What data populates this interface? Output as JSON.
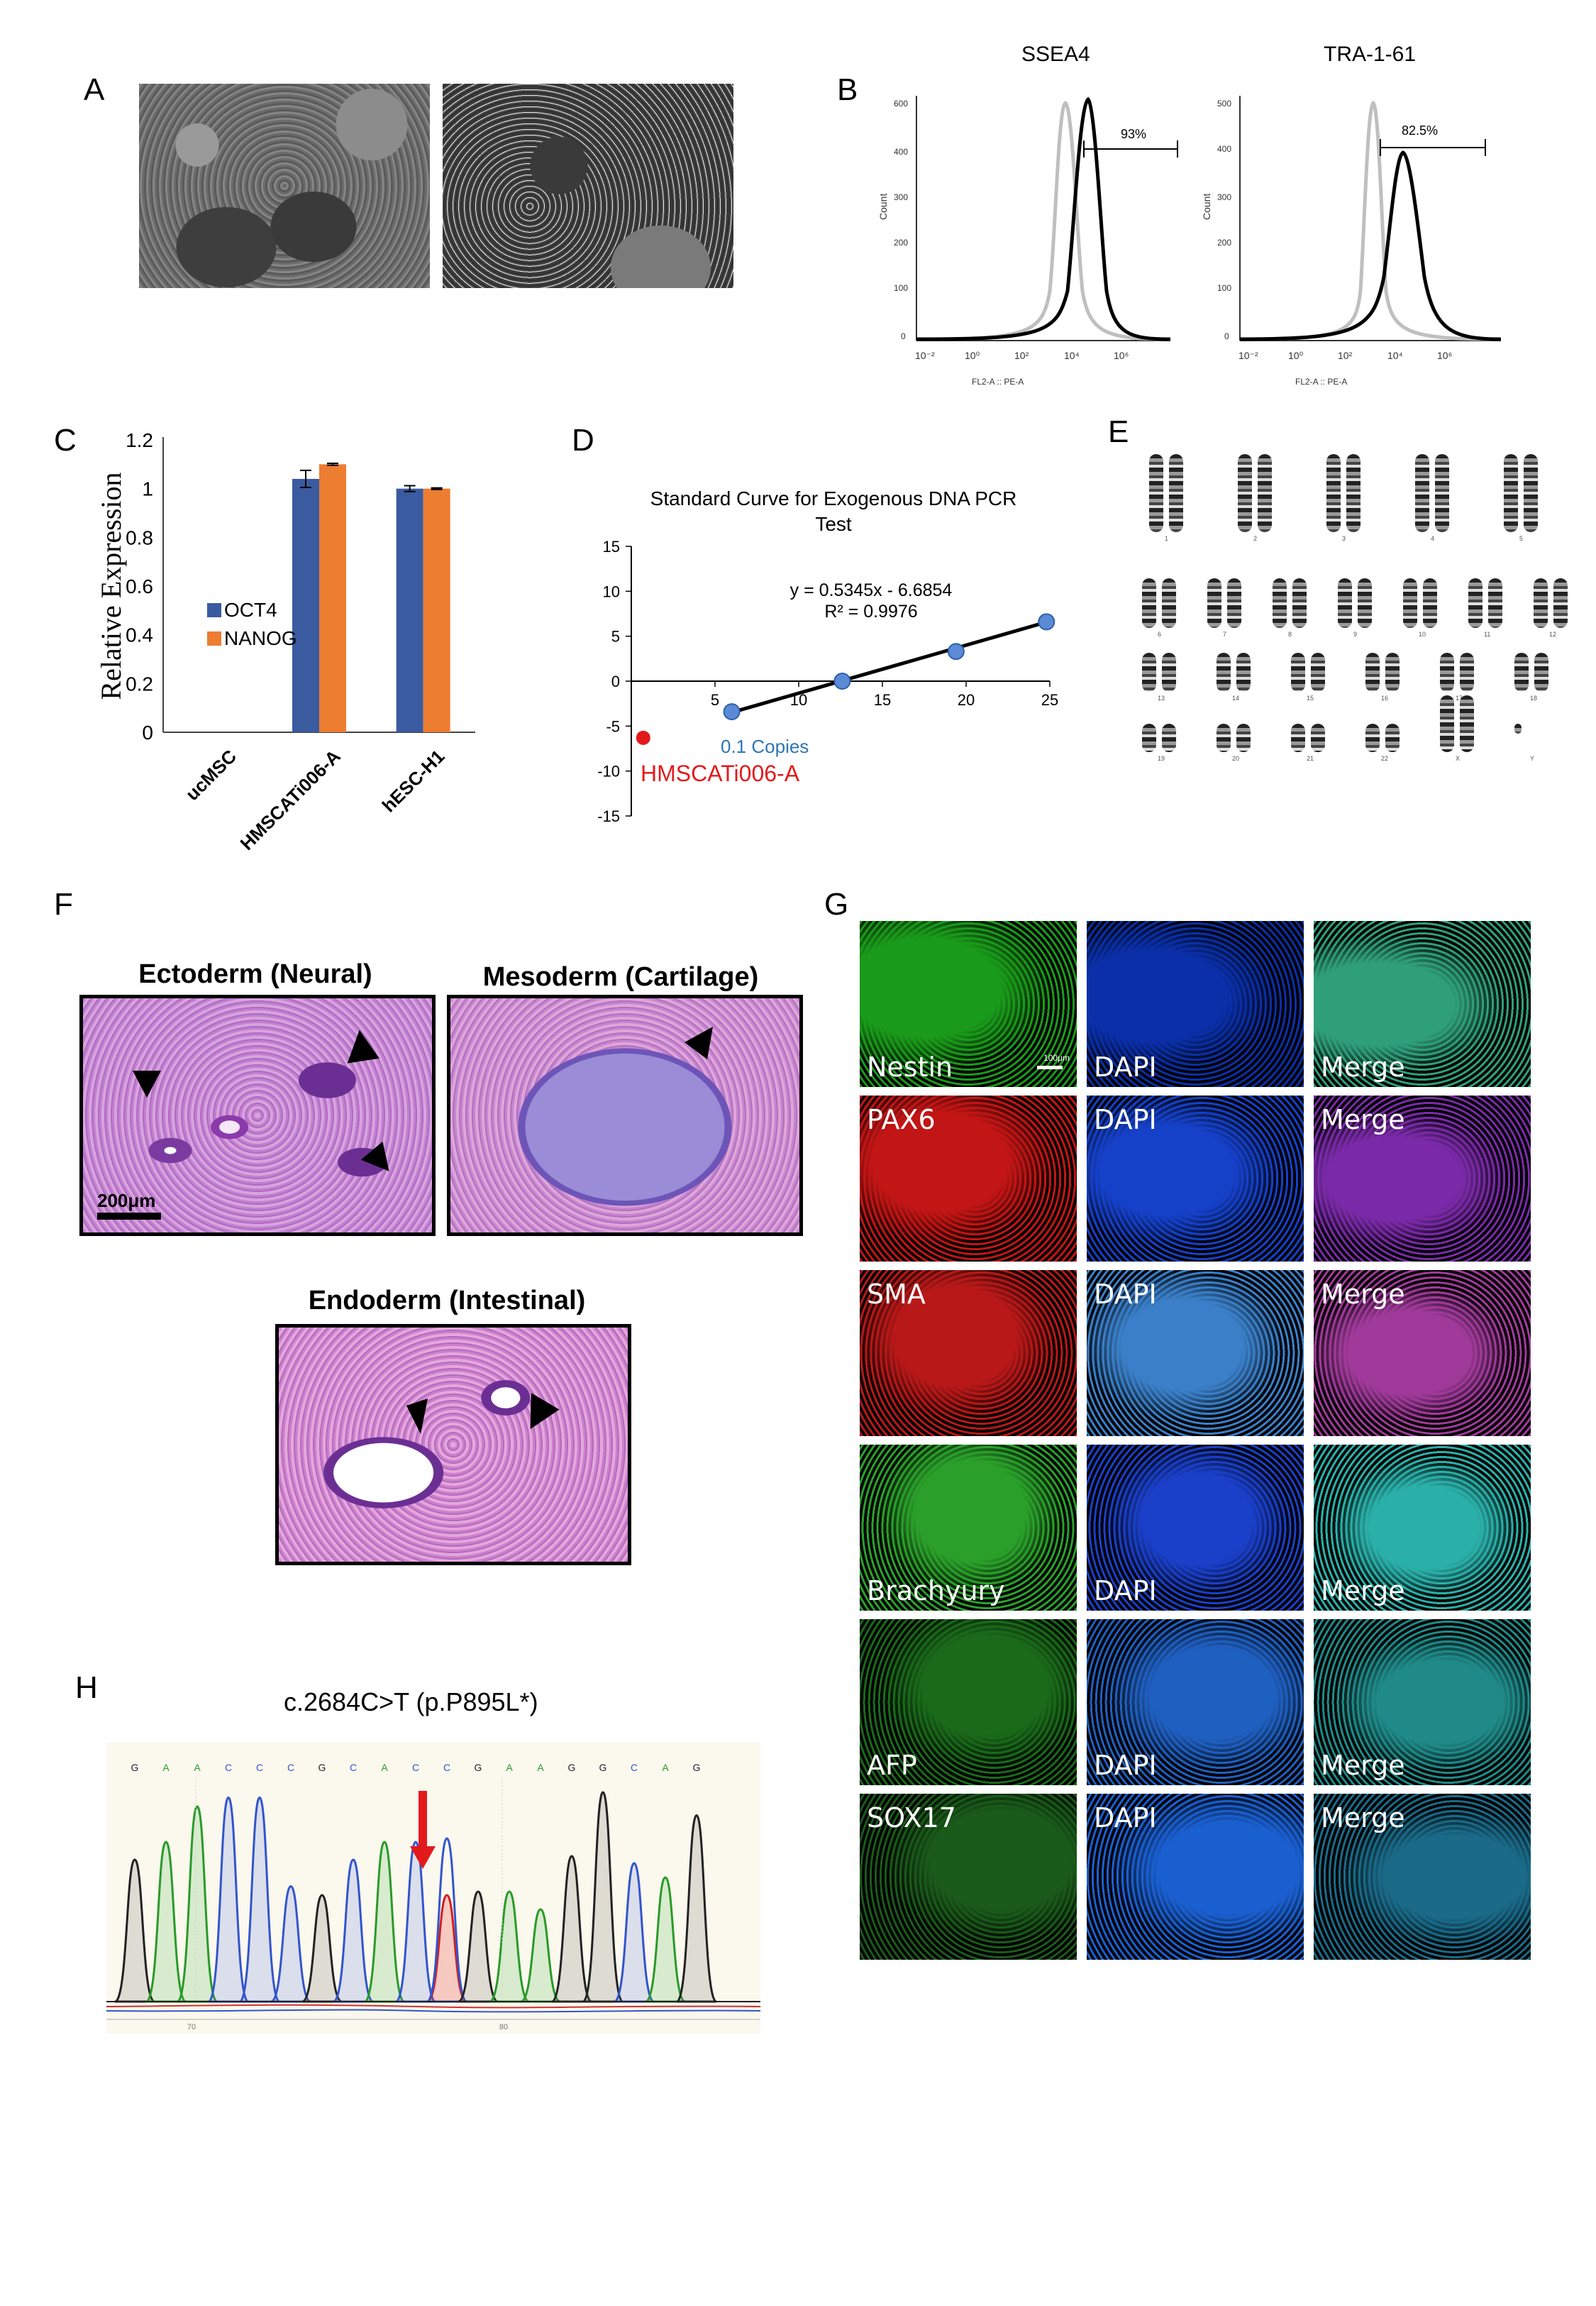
{
  "panels": {
    "a": "A",
    "b": "B",
    "c": "C",
    "d": "D",
    "e": "E",
    "f": "F",
    "g": "G",
    "h": "H"
  },
  "flow": {
    "plots": [
      {
        "title": "SSEA4",
        "percent": "93%",
        "xlabel": "FL2-A :: PE-A",
        "ylabel": "Count",
        "yticks": [
          "600",
          "400",
          "300",
          "200",
          "100",
          "0"
        ]
      },
      {
        "title": "TRA-1-61",
        "percent": "82.5%",
        "xlabel": "FL2-A :: PE-A",
        "ylabel": "Count",
        "yticks": [
          "500",
          "400",
          "300",
          "200",
          "100",
          "0"
        ]
      }
    ],
    "xticks": [
      "10⁻²",
      "10⁰",
      "10²",
      "10⁴",
      "10⁶"
    ]
  },
  "colors": {
    "oct4": "#3A5BA0",
    "nanog": "#ED7D31",
    "copies": "#2E75B6",
    "hmscati": "#E31A1C",
    "arrow": "#E31A1C"
  },
  "chart_data": [
    {
      "type": "bar",
      "ylabel": "Relative  Expression",
      "ylim": [
        0,
        1.2
      ],
      "yticks": [
        "0",
        "0.2",
        "0.4",
        "0.6",
        "0.8",
        "1",
        "1.2"
      ],
      "categories": [
        "ucMSC",
        "HMSCATi006-A",
        "hESC-H1"
      ],
      "series": [
        {
          "name": "OCT4",
          "values": [
            0,
            1.04,
            1.0
          ],
          "errors": [
            0,
            0.035,
            0.012
          ]
        },
        {
          "name": "NANOG",
          "values": [
            0,
            1.1,
            1.0
          ],
          "errors": [
            0,
            0.004,
            0.003
          ]
        }
      ],
      "legend": "left"
    },
    {
      "type": "scatter",
      "title": "Standard Curve for Exogenous DNA PCR Test",
      "xlim": [
        0,
        25
      ],
      "ylim": [
        -15,
        15
      ],
      "xticks": [
        "5",
        "10",
        "15",
        "20",
        "25"
      ],
      "yticks": [
        "15",
        "10",
        "5",
        "0",
        "-5",
        "-10",
        "-15"
      ],
      "series": [
        {
          "name": "0.1 Copies",
          "x": [
            6.0,
            12.6,
            19.4,
            24.8
          ],
          "y": [
            -3.4,
            0.0,
            3.3,
            6.6
          ]
        },
        {
          "name": "HMSCATi006-A",
          "x": [
            0.5
          ],
          "y": [
            -6.7
          ]
        }
      ],
      "trendline": {
        "slope": 0.5345,
        "intercept": -6.6854
      },
      "equation": "y = 0.5345x - 6.6854",
      "r2": "R² = 0.9976"
    }
  ],
  "karyotype": {
    "labels": [
      "1",
      "2",
      "3",
      "4",
      "5",
      "6",
      "7",
      "8",
      "9",
      "10",
      "11",
      "12",
      "13",
      "14",
      "15",
      "16",
      "17",
      "18",
      "19",
      "20",
      "21",
      "22",
      "X",
      "Y"
    ]
  },
  "histology": {
    "ectoderm": "Ectoderm (Neural)",
    "mesoderm": "Mesoderm (Cartilage)",
    "endoderm": "Endoderm (Intestinal)",
    "scale": "200μm"
  },
  "immuno": {
    "scale": "100μm",
    "rows": [
      {
        "marker": "Nestin",
        "dapi": "DAPI",
        "merge": "Merge"
      },
      {
        "marker": "PAX6",
        "dapi": "DAPI",
        "merge": "Merge"
      },
      {
        "marker": "SMA",
        "dapi": "DAPI",
        "merge": "Merge"
      },
      {
        "marker": "Brachyury",
        "dapi": "DAPI",
        "merge": "Merge"
      },
      {
        "marker": "AFP",
        "dapi": "DAPI",
        "merge": "Merge"
      },
      {
        "marker": "SOX17",
        "dapi": "DAPI",
        "merge": "Merge"
      }
    ]
  },
  "sequencing": {
    "title": "c.2684C>T (p.P895L*)",
    "bases": [
      "G",
      "A",
      "A",
      "C",
      "C",
      "C",
      "G",
      "C",
      "A",
      "C",
      "C",
      "G",
      "A",
      "A",
      "G",
      "G",
      "C",
      "A",
      "G"
    ],
    "positions": [
      "70",
      "80"
    ]
  }
}
